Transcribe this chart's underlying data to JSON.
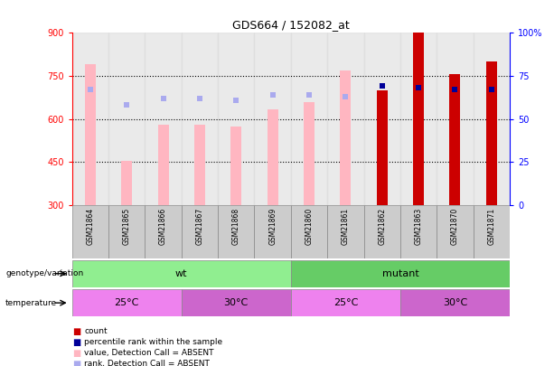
{
  "title": "GDS664 / 152082_at",
  "samples": [
    "GSM21864",
    "GSM21865",
    "GSM21866",
    "GSM21867",
    "GSM21868",
    "GSM21869",
    "GSM21860",
    "GSM21861",
    "GSM21862",
    "GSM21863",
    "GSM21870",
    "GSM21871"
  ],
  "ylim_left": [
    300,
    900
  ],
  "ylim_right": [
    0,
    100
  ],
  "yticks_left": [
    300,
    450,
    600,
    750,
    900
  ],
  "yticks_right": [
    0,
    25,
    50,
    75,
    100
  ],
  "count_values": [
    null,
    null,
    null,
    null,
    null,
    null,
    null,
    null,
    700,
    900,
    755,
    800
  ],
  "rank_values": [
    null,
    null,
    null,
    null,
    null,
    null,
    null,
    null,
    69,
    68,
    67,
    67
  ],
  "absent_value": [
    790,
    455,
    580,
    580,
    575,
    635,
    660,
    770,
    null,
    null,
    null,
    null
  ],
  "absent_rank": [
    67,
    58,
    62,
    62,
    61,
    64,
    64,
    63,
    null,
    null,
    null,
    null
  ],
  "genotype": [
    {
      "label": "wt",
      "start": 0,
      "end": 6,
      "color": "#90EE90"
    },
    {
      "label": "mutant",
      "start": 6,
      "end": 12,
      "color": "#66CC66"
    }
  ],
  "temperature": [
    {
      "label": "25°C",
      "start": 0,
      "end": 3,
      "color": "#EE82EE"
    },
    {
      "label": "30°C",
      "start": 3,
      "end": 6,
      "color": "#CC66CC"
    },
    {
      "label": "25°C",
      "start": 6,
      "end": 9,
      "color": "#EE82EE"
    },
    {
      "label": "30°C",
      "start": 9,
      "end": 12,
      "color": "#CC66CC"
    }
  ],
  "absent_bar_color": "#FFB6C1",
  "absent_rank_color": "#AAAAEE",
  "count_color": "#CC0000",
  "rank_color": "#000099"
}
